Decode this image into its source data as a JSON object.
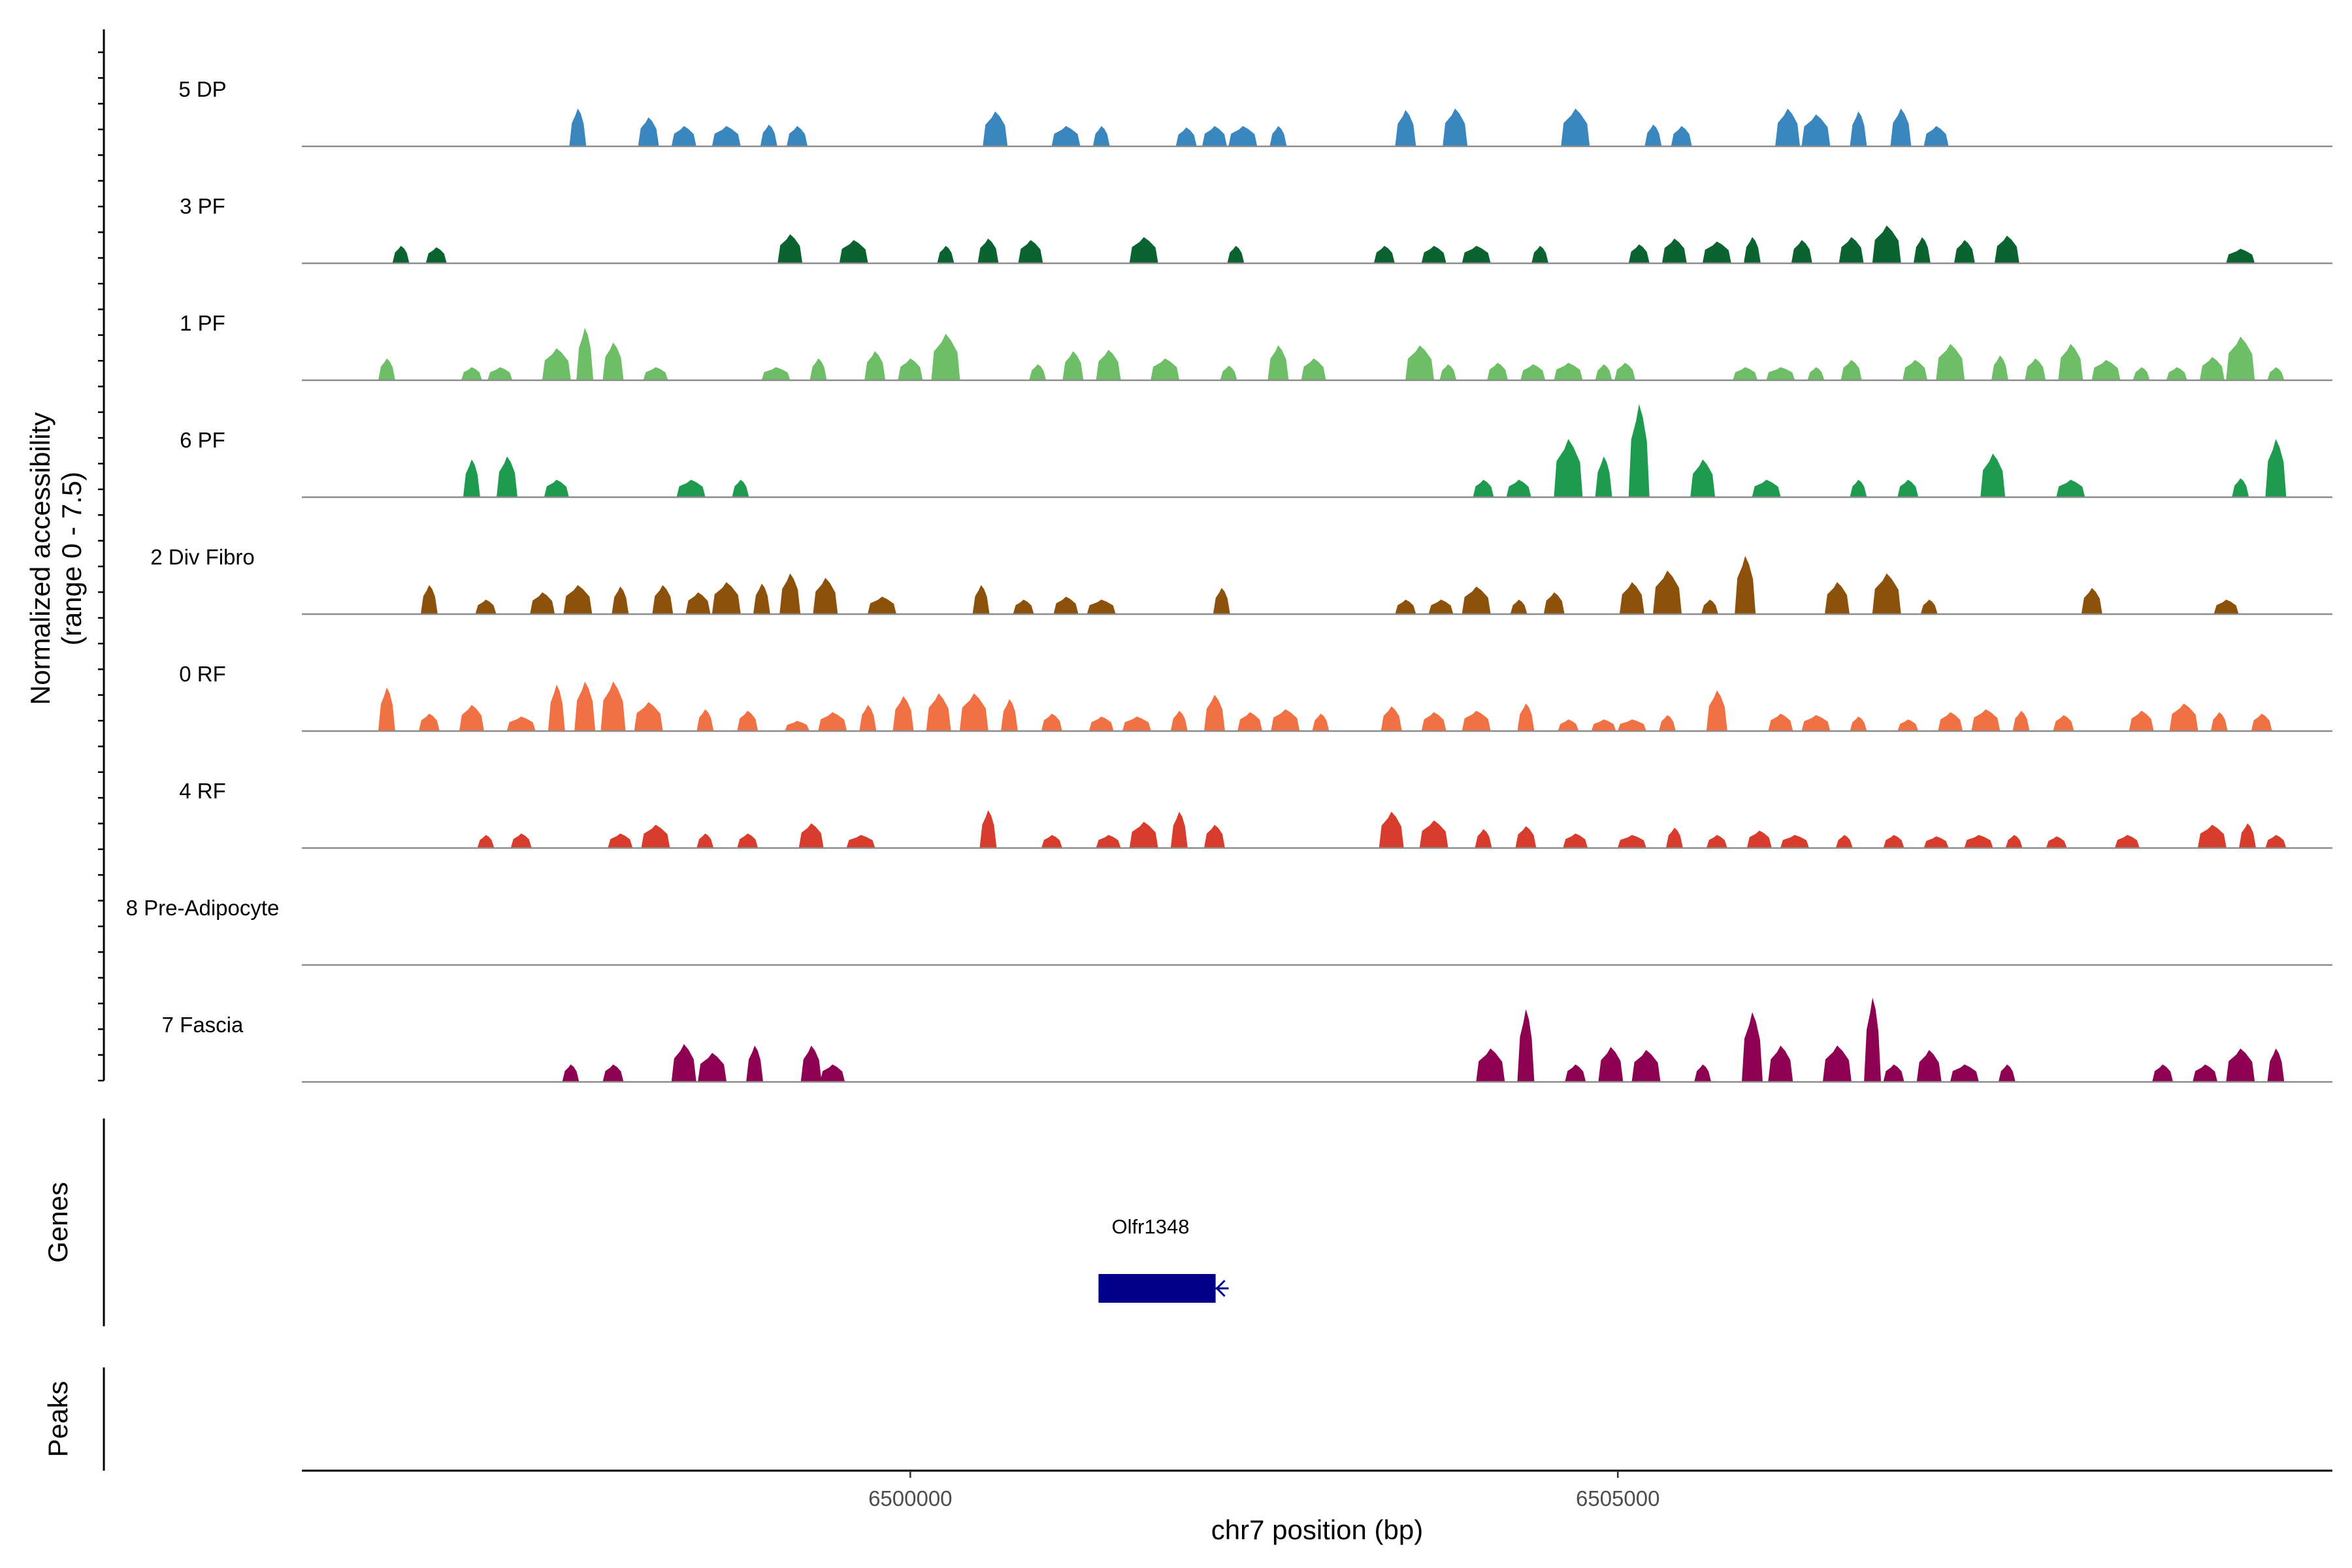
{
  "chart_data": {
    "type": "area",
    "title": "",
    "ylabel_line1": "Normalized accessibility",
    "ylabel_line2": "(range 0 - 7.5)",
    "xlabel": "chr7 position (bp)",
    "xlim": [
      6495700,
      6510050
    ],
    "ylim": [
      0,
      7.5
    ],
    "x_ticks": [
      6500000,
      6505000
    ],
    "x_tick_labels": [
      "6500000",
      "6505000"
    ],
    "panel_labels": {
      "genes": "Genes",
      "peaks": "Peaks"
    },
    "genes": [
      {
        "name": "Olfr1348",
        "start": 6501330,
        "end": 6502250,
        "strand": "-",
        "color": "#00008B"
      }
    ],
    "series": [
      {
        "name": "5 DP",
        "color": "#3A87C0",
        "peaks": [
          [
            6497650,
            2.6
          ],
          [
            6498150,
            2.0
          ],
          [
            6498400,
            1.4
          ],
          [
            6498700,
            1.4
          ],
          [
            6499000,
            1.5
          ],
          [
            6499200,
            1.4
          ],
          [
            6500600,
            2.4
          ],
          [
            6501100,
            1.4
          ],
          [
            6501350,
            1.4
          ],
          [
            6501950,
            1.3
          ],
          [
            6502150,
            1.4
          ],
          [
            6502350,
            1.4
          ],
          [
            6502600,
            1.4
          ],
          [
            6503500,
            2.5
          ],
          [
            6503850,
            2.6
          ],
          [
            6504700,
            2.6
          ],
          [
            6505250,
            1.5
          ],
          [
            6505450,
            1.4
          ],
          [
            6506200,
            2.6
          ],
          [
            6506400,
            2.2
          ],
          [
            6506700,
            2.4
          ],
          [
            6507000,
            2.6
          ],
          [
            6507250,
            1.4
          ]
        ]
      },
      {
        "name": "3 PF",
        "color": "#0B6330",
        "peaks": [
          [
            6496400,
            1.2
          ],
          [
            6496650,
            1.1
          ],
          [
            6499150,
            2.0
          ],
          [
            6499600,
            1.6
          ],
          [
            6500250,
            1.2
          ],
          [
            6500550,
            1.7
          ],
          [
            6500850,
            1.6
          ],
          [
            6501650,
            1.8
          ],
          [
            6502300,
            1.2
          ],
          [
            6503350,
            1.2
          ],
          [
            6503700,
            1.2
          ],
          [
            6504000,
            1.2
          ],
          [
            6504450,
            1.2
          ],
          [
            6505150,
            1.3
          ],
          [
            6505400,
            1.7
          ],
          [
            6505700,
            1.5
          ],
          [
            6505950,
            1.8
          ],
          [
            6506300,
            1.6
          ],
          [
            6506650,
            1.8
          ],
          [
            6506900,
            2.6
          ],
          [
            6507150,
            1.8
          ],
          [
            6507450,
            1.6
          ],
          [
            6507750,
            1.9
          ],
          [
            6509400,
            1.0
          ]
        ]
      },
      {
        "name": "1 PF",
        "color": "#6DBE67",
        "peaks": [
          [
            6496300,
            1.5
          ],
          [
            6496900,
            0.9
          ],
          [
            6497100,
            0.9
          ],
          [
            6497500,
            2.2
          ],
          [
            6497700,
            3.6
          ],
          [
            6497900,
            2.6
          ],
          [
            6498200,
            0.9
          ],
          [
            6499050,
            0.9
          ],
          [
            6499350,
            1.5
          ],
          [
            6499750,
            2.0
          ],
          [
            6500000,
            1.5
          ],
          [
            6500250,
            3.2
          ],
          [
            6500900,
            1.1
          ],
          [
            6501150,
            2.0
          ],
          [
            6501400,
            2.1
          ],
          [
            6501800,
            1.5
          ],
          [
            6502250,
            1.0
          ],
          [
            6502600,
            2.4
          ],
          [
            6502850,
            1.5
          ],
          [
            6503600,
            2.4
          ],
          [
            6503800,
            1.1
          ],
          [
            6504150,
            1.2
          ],
          [
            6504400,
            1.1
          ],
          [
            6504650,
            1.2
          ],
          [
            6504900,
            1.1
          ],
          [
            6505050,
            1.2
          ],
          [
            6505900,
            0.9
          ],
          [
            6506150,
            0.9
          ],
          [
            6506400,
            0.9
          ],
          [
            6506650,
            1.4
          ],
          [
            6507100,
            1.4
          ],
          [
            6507350,
            2.5
          ],
          [
            6507700,
            1.7
          ],
          [
            6507950,
            1.5
          ],
          [
            6508200,
            2.5
          ],
          [
            6508450,
            1.4
          ],
          [
            6508700,
            0.9
          ],
          [
            6508950,
            0.9
          ],
          [
            6509200,
            1.6
          ],
          [
            6509400,
            3.0
          ],
          [
            6509650,
            0.9
          ]
        ]
      },
      {
        "name": "6 PF",
        "color": "#1F9B4F",
        "peaks": [
          [
            6496900,
            2.6
          ],
          [
            6497150,
            2.8
          ],
          [
            6497500,
            1.2
          ],
          [
            6498450,
            1.2
          ],
          [
            6498800,
            1.2
          ],
          [
            6504050,
            1.2
          ],
          [
            6504300,
            1.2
          ],
          [
            6504650,
            4.0
          ],
          [
            6504900,
            2.8
          ],
          [
            6505150,
            6.4
          ],
          [
            6505600,
            2.6
          ],
          [
            6506050,
            1.2
          ],
          [
            6506700,
            1.2
          ],
          [
            6507050,
            1.2
          ],
          [
            6507650,
            3.0
          ],
          [
            6508200,
            1.2
          ],
          [
            6509400,
            1.3
          ],
          [
            6509650,
            4.0
          ]
        ]
      },
      {
        "name": "2 Div Fibro",
        "color": "#8C510A",
        "peaks": [
          [
            6496600,
            2.0
          ],
          [
            6497000,
            1.0
          ],
          [
            6497400,
            1.5
          ],
          [
            6497650,
            2.0
          ],
          [
            6497950,
            1.9
          ],
          [
            6498250,
            2.0
          ],
          [
            6498500,
            1.5
          ],
          [
            6498700,
            2.2
          ],
          [
            6498950,
            2.1
          ],
          [
            6499150,
            2.8
          ],
          [
            6499400,
            2.5
          ],
          [
            6499800,
            1.2
          ],
          [
            6500500,
            2.0
          ],
          [
            6500800,
            1.0
          ],
          [
            6501100,
            1.2
          ],
          [
            6501350,
            1.0
          ],
          [
            6502200,
            1.8
          ],
          [
            6503500,
            1.0
          ],
          [
            6503750,
            1.0
          ],
          [
            6504000,
            1.9
          ],
          [
            6504300,
            1.0
          ],
          [
            6504550,
            1.5
          ],
          [
            6505100,
            2.2
          ],
          [
            6505350,
            3.0
          ],
          [
            6505650,
            1.0
          ],
          [
            6505900,
            4.0
          ],
          [
            6506550,
            2.2
          ],
          [
            6506900,
            2.8
          ],
          [
            6507200,
            1.0
          ],
          [
            6508350,
            1.8
          ],
          [
            6509300,
            1.0
          ]
        ]
      },
      {
        "name": "0 RF",
        "color": "#F07144",
        "peaks": [
          [
            6496300,
            3.0
          ],
          [
            6496600,
            1.2
          ],
          [
            6496900,
            1.8
          ],
          [
            6497250,
            1.0
          ],
          [
            6497500,
            3.2
          ],
          [
            6497700,
            3.4
          ],
          [
            6497900,
            3.4
          ],
          [
            6498150,
            2.0
          ],
          [
            6498550,
            1.5
          ],
          [
            6498850,
            1.4
          ],
          [
            6499200,
            0.7
          ],
          [
            6499450,
            1.3
          ],
          [
            6499700,
            1.8
          ],
          [
            6499950,
            2.4
          ],
          [
            6500200,
            2.6
          ],
          [
            6500450,
            2.6
          ],
          [
            6500700,
            2.2
          ],
          [
            6501000,
            1.2
          ],
          [
            6501350,
            1.0
          ],
          [
            6501600,
            1.0
          ],
          [
            6501900,
            1.4
          ],
          [
            6502150,
            2.5
          ],
          [
            6502400,
            1.3
          ],
          [
            6502650,
            1.5
          ],
          [
            6502900,
            1.2
          ],
          [
            6503400,
            1.7
          ],
          [
            6503700,
            1.3
          ],
          [
            6504000,
            1.4
          ],
          [
            6504350,
            1.9
          ],
          [
            6504650,
            0.8
          ],
          [
            6504900,
            0.8
          ],
          [
            6505100,
            0.8
          ],
          [
            6505350,
            1.1
          ],
          [
            6505700,
            2.8
          ],
          [
            6506150,
            1.2
          ],
          [
            6506400,
            1.1
          ],
          [
            6506700,
            1.0
          ],
          [
            6507050,
            0.8
          ],
          [
            6507350,
            1.3
          ],
          [
            6507600,
            1.5
          ],
          [
            6507850,
            1.4
          ],
          [
            6508150,
            1.1
          ],
          [
            6508700,
            1.4
          ],
          [
            6509000,
            1.9
          ],
          [
            6509250,
            1.3
          ],
          [
            6509550,
            1.2
          ]
        ]
      },
      {
        "name": "4 RF",
        "color": "#D73C2C",
        "peaks": [
          [
            6497000,
            0.9
          ],
          [
            6497250,
            1.0
          ],
          [
            6497950,
            1.0
          ],
          [
            6498200,
            1.6
          ],
          [
            6498550,
            1.0
          ],
          [
            6498850,
            1.0
          ],
          [
            6499300,
            1.7
          ],
          [
            6499650,
            0.9
          ],
          [
            6500550,
            2.6
          ],
          [
            6501000,
            0.9
          ],
          [
            6501400,
            0.9
          ],
          [
            6501650,
            1.8
          ],
          [
            6501900,
            2.5
          ],
          [
            6502150,
            1.6
          ],
          [
            6503400,
            2.5
          ],
          [
            6503700,
            1.9
          ],
          [
            6504050,
            1.3
          ],
          [
            6504350,
            1.5
          ],
          [
            6504700,
            1.0
          ],
          [
            6505100,
            0.9
          ],
          [
            6505400,
            1.4
          ],
          [
            6505700,
            0.9
          ],
          [
            6506000,
            1.2
          ],
          [
            6506250,
            0.9
          ],
          [
            6506600,
            0.9
          ],
          [
            6506950,
            0.9
          ],
          [
            6507250,
            0.8
          ],
          [
            6507550,
            0.9
          ],
          [
            6507800,
            0.9
          ],
          [
            6508100,
            0.8
          ],
          [
            6508600,
            0.9
          ],
          [
            6509200,
            1.6
          ],
          [
            6509450,
            1.7
          ],
          [
            6509650,
            0.9
          ]
        ]
      },
      {
        "name": "8 Pre-Adipocyte",
        "color": "#E7298A",
        "peaks": []
      },
      {
        "name": "7 Fascia",
        "color": "#8E0152",
        "peaks": [
          [
            6497600,
            1.2
          ],
          [
            6497900,
            1.2
          ],
          [
            6498400,
            2.6
          ],
          [
            6498600,
            2.0
          ],
          [
            6498900,
            2.5
          ],
          [
            6499300,
            2.5
          ],
          [
            6499450,
            1.2
          ],
          [
            6504100,
            2.3
          ],
          [
            6504350,
            5.0
          ],
          [
            6504700,
            1.2
          ],
          [
            6504950,
            2.4
          ],
          [
            6505200,
            2.2
          ],
          [
            6505600,
            1.2
          ],
          [
            6505950,
            4.8
          ],
          [
            6506150,
            2.5
          ],
          [
            6506550,
            2.5
          ],
          [
            6506800,
            5.8
          ],
          [
            6506950,
            1.2
          ],
          [
            6507200,
            2.2
          ],
          [
            6507450,
            1.2
          ],
          [
            6507750,
            1.2
          ],
          [
            6508850,
            1.2
          ],
          [
            6509150,
            1.2
          ],
          [
            6509400,
            2.3
          ],
          [
            6509650,
            2.3
          ]
        ]
      }
    ]
  }
}
